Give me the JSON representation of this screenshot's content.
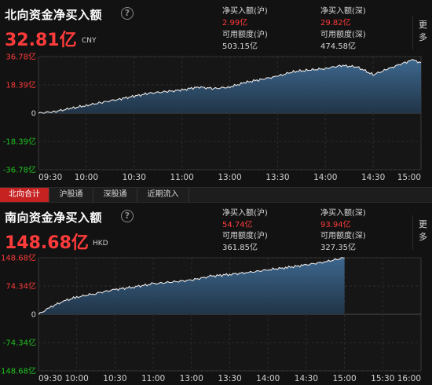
{
  "tabs": [
    "北向合计",
    "沪股通",
    "深股通",
    "近期流入"
  ],
  "more_label": "更多",
  "north": {
    "title": "北向资金净买入额",
    "value": "32.81亿",
    "unit": "CNY",
    "stats": [
      {
        "label": "净买入额(沪)",
        "value": "2.99亿",
        "color": "red"
      },
      {
        "label": "净买入额(深)",
        "value": "29.82亿",
        "color": "red"
      },
      {
        "label": "可用额度(沪)",
        "value": "503.15亿",
        "color": "white"
      },
      {
        "label": "可用额度(深)",
        "value": "474.58亿",
        "color": "white"
      }
    ]
  },
  "south": {
    "title": "南向资金净买入额",
    "value": "148.68亿",
    "unit": "HKD",
    "stats": [
      {
        "label": "净买入额(沪)",
        "value": "54.74亿",
        "color": "red"
      },
      {
        "label": "净买入额(深)",
        "value": "93.94亿",
        "color": "red"
      },
      {
        "label": "可用额度(沪)",
        "value": "361.85亿",
        "color": "white"
      },
      {
        "label": "可用额度(深)",
        "value": "327.35亿",
        "color": "white"
      }
    ]
  },
  "chart_data": [
    {
      "type": "area",
      "ylim": [
        -36.78,
        36.78
      ],
      "y_ticks": [
        "36.78亿",
        "18.39亿",
        "0",
        "-18.39亿",
        "-36.78亿"
      ],
      "y_tick_values": [
        36.78,
        18.39,
        0,
        -18.39,
        -36.78
      ],
      "x_ticks": [
        "09:30",
        "10:00",
        "10:30",
        "11:00",
        "13:00",
        "13:30",
        "14:00",
        "14:30",
        "15:00"
      ],
      "x_range": [
        "09:30",
        "15:00"
      ],
      "grid": true,
      "x": [
        "09:30",
        "09:40",
        "09:50",
        "10:00",
        "10:10",
        "10:20",
        "10:30",
        "10:40",
        "10:50",
        "11:00",
        "11:10",
        "11:20",
        "11:30",
        "13:10",
        "13:20",
        "13:30",
        "13:40",
        "13:50",
        "14:00",
        "14:10",
        "14:20",
        "14:30",
        "14:40",
        "14:50",
        "14:55",
        "15:00"
      ],
      "values": [
        0,
        1,
        3,
        5,
        7,
        9,
        11,
        13,
        14,
        15,
        17,
        16,
        17,
        20,
        22,
        24,
        27,
        28,
        29,
        31,
        30,
        25,
        29,
        33,
        34.5,
        32.81
      ]
    },
    {
      "type": "area",
      "ylim": [
        -148.68,
        148.68
      ],
      "y_ticks": [
        "148.68亿",
        "74.34亿",
        "0",
        "-74.34亿",
        "-148.68亿"
      ],
      "y_tick_values": [
        148.68,
        74.34,
        0,
        -74.34,
        -148.68
      ],
      "x_ticks": [
        "09:30",
        "10:00",
        "10:30",
        "11:00",
        "13:00",
        "13:30",
        "14:00",
        "14:30",
        "15:00",
        "15:30",
        "16:00"
      ],
      "x_range": [
        "09:30",
        "16:00"
      ],
      "grid": true,
      "x": [
        "09:30",
        "09:40",
        "09:50",
        "10:00",
        "10:15",
        "10:30",
        "10:45",
        "11:00",
        "11:30",
        "13:15",
        "13:30",
        "13:45",
        "14:00",
        "14:15",
        "14:30",
        "14:45",
        "15:00"
      ],
      "values": [
        0,
        20,
        35,
        45,
        55,
        65,
        72,
        80,
        90,
        100,
        105,
        110,
        117,
        123,
        130,
        138,
        148.68
      ]
    }
  ]
}
